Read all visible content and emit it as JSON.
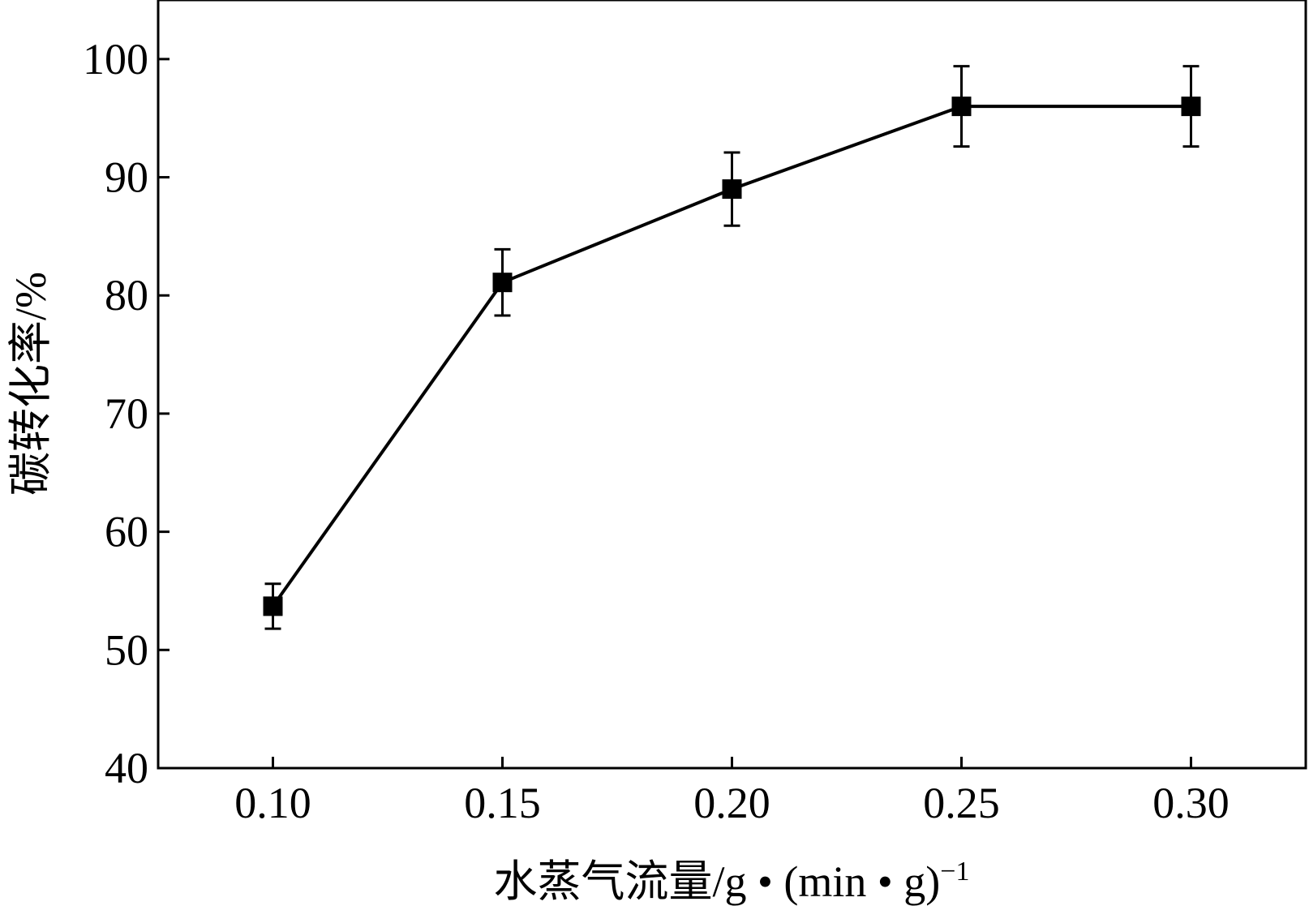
{
  "chart_data": {
    "type": "line",
    "title": "",
    "xlabel": "水蒸气流量/g • (min • g)",
    "xlabel_superscript": "−1",
    "ylabel": "碳转化率/%",
    "xlim": [
      0.075,
      0.325
    ],
    "ylim": [
      40,
      105
    ],
    "x_ticks": [
      0.1,
      0.15,
      0.2,
      0.25,
      0.3
    ],
    "x_tick_labels": [
      "0.10",
      "0.15",
      "0.20",
      "0.25",
      "0.30"
    ],
    "y_ticks": [
      40,
      50,
      60,
      70,
      80,
      90,
      100
    ],
    "y_tick_labels": [
      "40",
      "50",
      "60",
      "70",
      "80",
      "90",
      "100"
    ],
    "grid": false,
    "legend": "none",
    "series": [
      {
        "x": [
          0.1,
          0.15,
          0.2,
          0.25,
          0.3
        ],
        "y": [
          53.7,
          81.1,
          89.0,
          96.0,
          96.0
        ],
        "error": [
          1.9,
          2.8,
          3.1,
          3.4,
          3.4
        ],
        "marker": "square",
        "color": "#000000"
      }
    ]
  }
}
